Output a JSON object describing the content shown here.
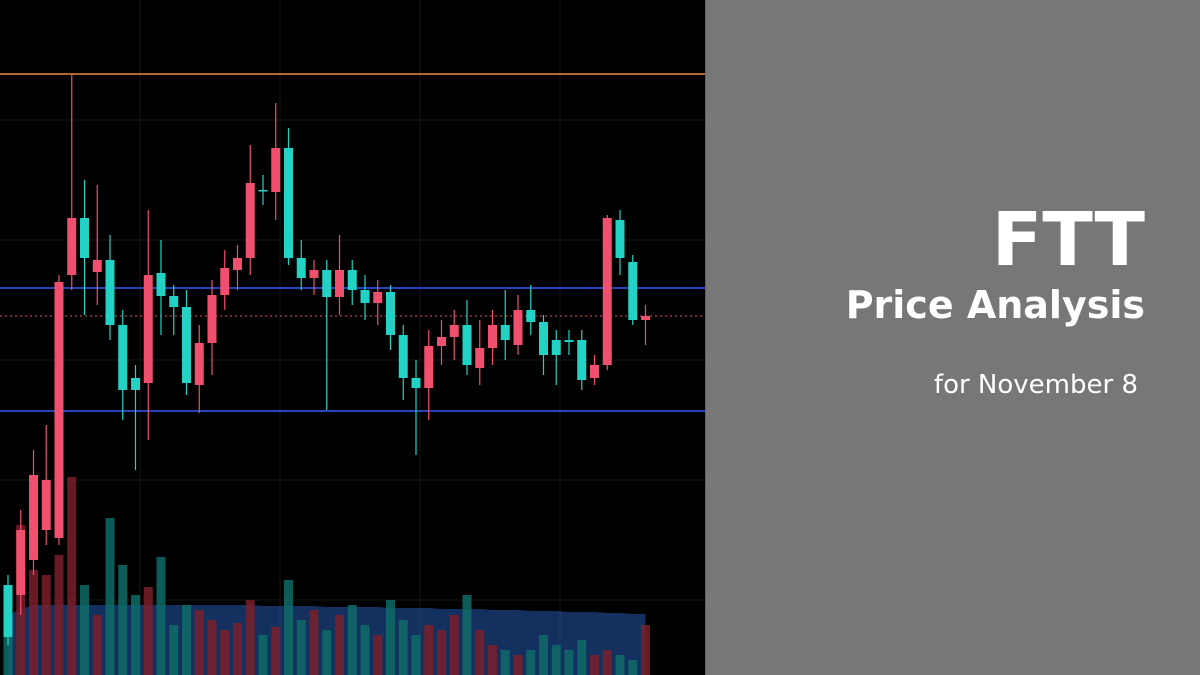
{
  "chart_data": {
    "type": "candlestick",
    "title": "FTT",
    "subtitle": "Price Analysis",
    "annotation": "for November 8",
    "ylim": [
      0,
      675
    ],
    "up_color": "#f0506e",
    "down_color": "#22d3c5",
    "volume_up_color": "#7a1f2a",
    "volume_down_color": "#0f6b66",
    "volume_ma_color": "#2a6bd1",
    "open": [
      90,
      80,
      115,
      145,
      137,
      400,
      457,
      403,
      415,
      350,
      297,
      292,
      402,
      379,
      368,
      290,
      332,
      380,
      405,
      417,
      485,
      483,
      527,
      417,
      397,
      405,
      378,
      405,
      385,
      372,
      383,
      340,
      297,
      287,
      329,
      338,
      350,
      307,
      327,
      350,
      330,
      365,
      353,
      335,
      335,
      335,
      297,
      310,
      455,
      413,
      355
    ],
    "high": [
      100,
      165,
      225,
      250,
      400,
      601,
      495,
      490,
      440,
      365,
      310,
      465,
      435,
      390,
      385,
      350,
      395,
      425,
      430,
      530,
      500,
      572,
      547,
      435,
      415,
      415,
      440,
      415,
      400,
      395,
      390,
      350,
      315,
      345,
      355,
      365,
      375,
      355,
      365,
      385,
      380,
      390,
      360,
      345,
      345,
      345,
      320,
      460,
      465,
      420,
      370
    ],
    "low": [
      30,
      60,
      100,
      130,
      130,
      385,
      360,
      370,
      335,
      255,
      205,
      235,
      340,
      340,
      280,
      262,
      300,
      365,
      385,
      400,
      470,
      455,
      410,
      385,
      380,
      265,
      360,
      370,
      355,
      350,
      325,
      275,
      220,
      255,
      310,
      315,
      300,
      290,
      310,
      315,
      320,
      340,
      300,
      290,
      320,
      285,
      290,
      305,
      400,
      350,
      330
    ],
    "close": [
      38,
      145,
      200,
      195,
      393,
      457,
      417,
      415,
      350,
      285,
      285,
      400,
      379,
      368,
      292,
      332,
      380,
      407,
      417,
      492,
      484,
      527,
      417,
      397,
      405,
      378,
      405,
      385,
      372,
      383,
      340,
      297,
      287,
      329,
      338,
      350,
      310,
      327,
      350,
      335,
      365,
      353,
      320,
      320,
      333,
      295,
      310,
      457,
      417,
      355,
      359
    ],
    "volume": [
      65,
      150,
      105,
      100,
      120,
      198,
      90,
      60,
      157,
      110,
      80,
      88,
      118,
      50,
      70,
      65,
      55,
      45,
      52,
      75,
      40,
      48,
      95,
      55,
      65,
      45,
      60,
      70,
      50,
      40,
      75,
      55,
      40,
      50,
      45,
      60,
      80,
      45,
      30,
      25,
      20,
      25,
      40,
      30,
      25,
      35,
      20,
      25,
      20,
      15,
      50
    ],
    "volume_ma": [
      60,
      66,
      70,
      70,
      70,
      70,
      70,
      70,
      70,
      70,
      70,
      70,
      70,
      70,
      70,
      70,
      70,
      70,
      70,
      70,
      69,
      69,
      69,
      69,
      69,
      68,
      68,
      68,
      68,
      68,
      67,
      67,
      67,
      67,
      66,
      66,
      66,
      66,
      65,
      65,
      65,
      64,
      64,
      64,
      63,
      63,
      63,
      62,
      62,
      61,
      61
    ],
    "levels": [
      {
        "value": 601,
        "color": "#f08a3c",
        "style": "solid"
      },
      {
        "value": 387,
        "color": "#2f5cf5",
        "style": "solid"
      },
      {
        "value": 359,
        "color": "#e0505a",
        "style": "dotted"
      },
      {
        "value": 264,
        "color": "#2f5cf5",
        "style": "solid"
      }
    ]
  }
}
